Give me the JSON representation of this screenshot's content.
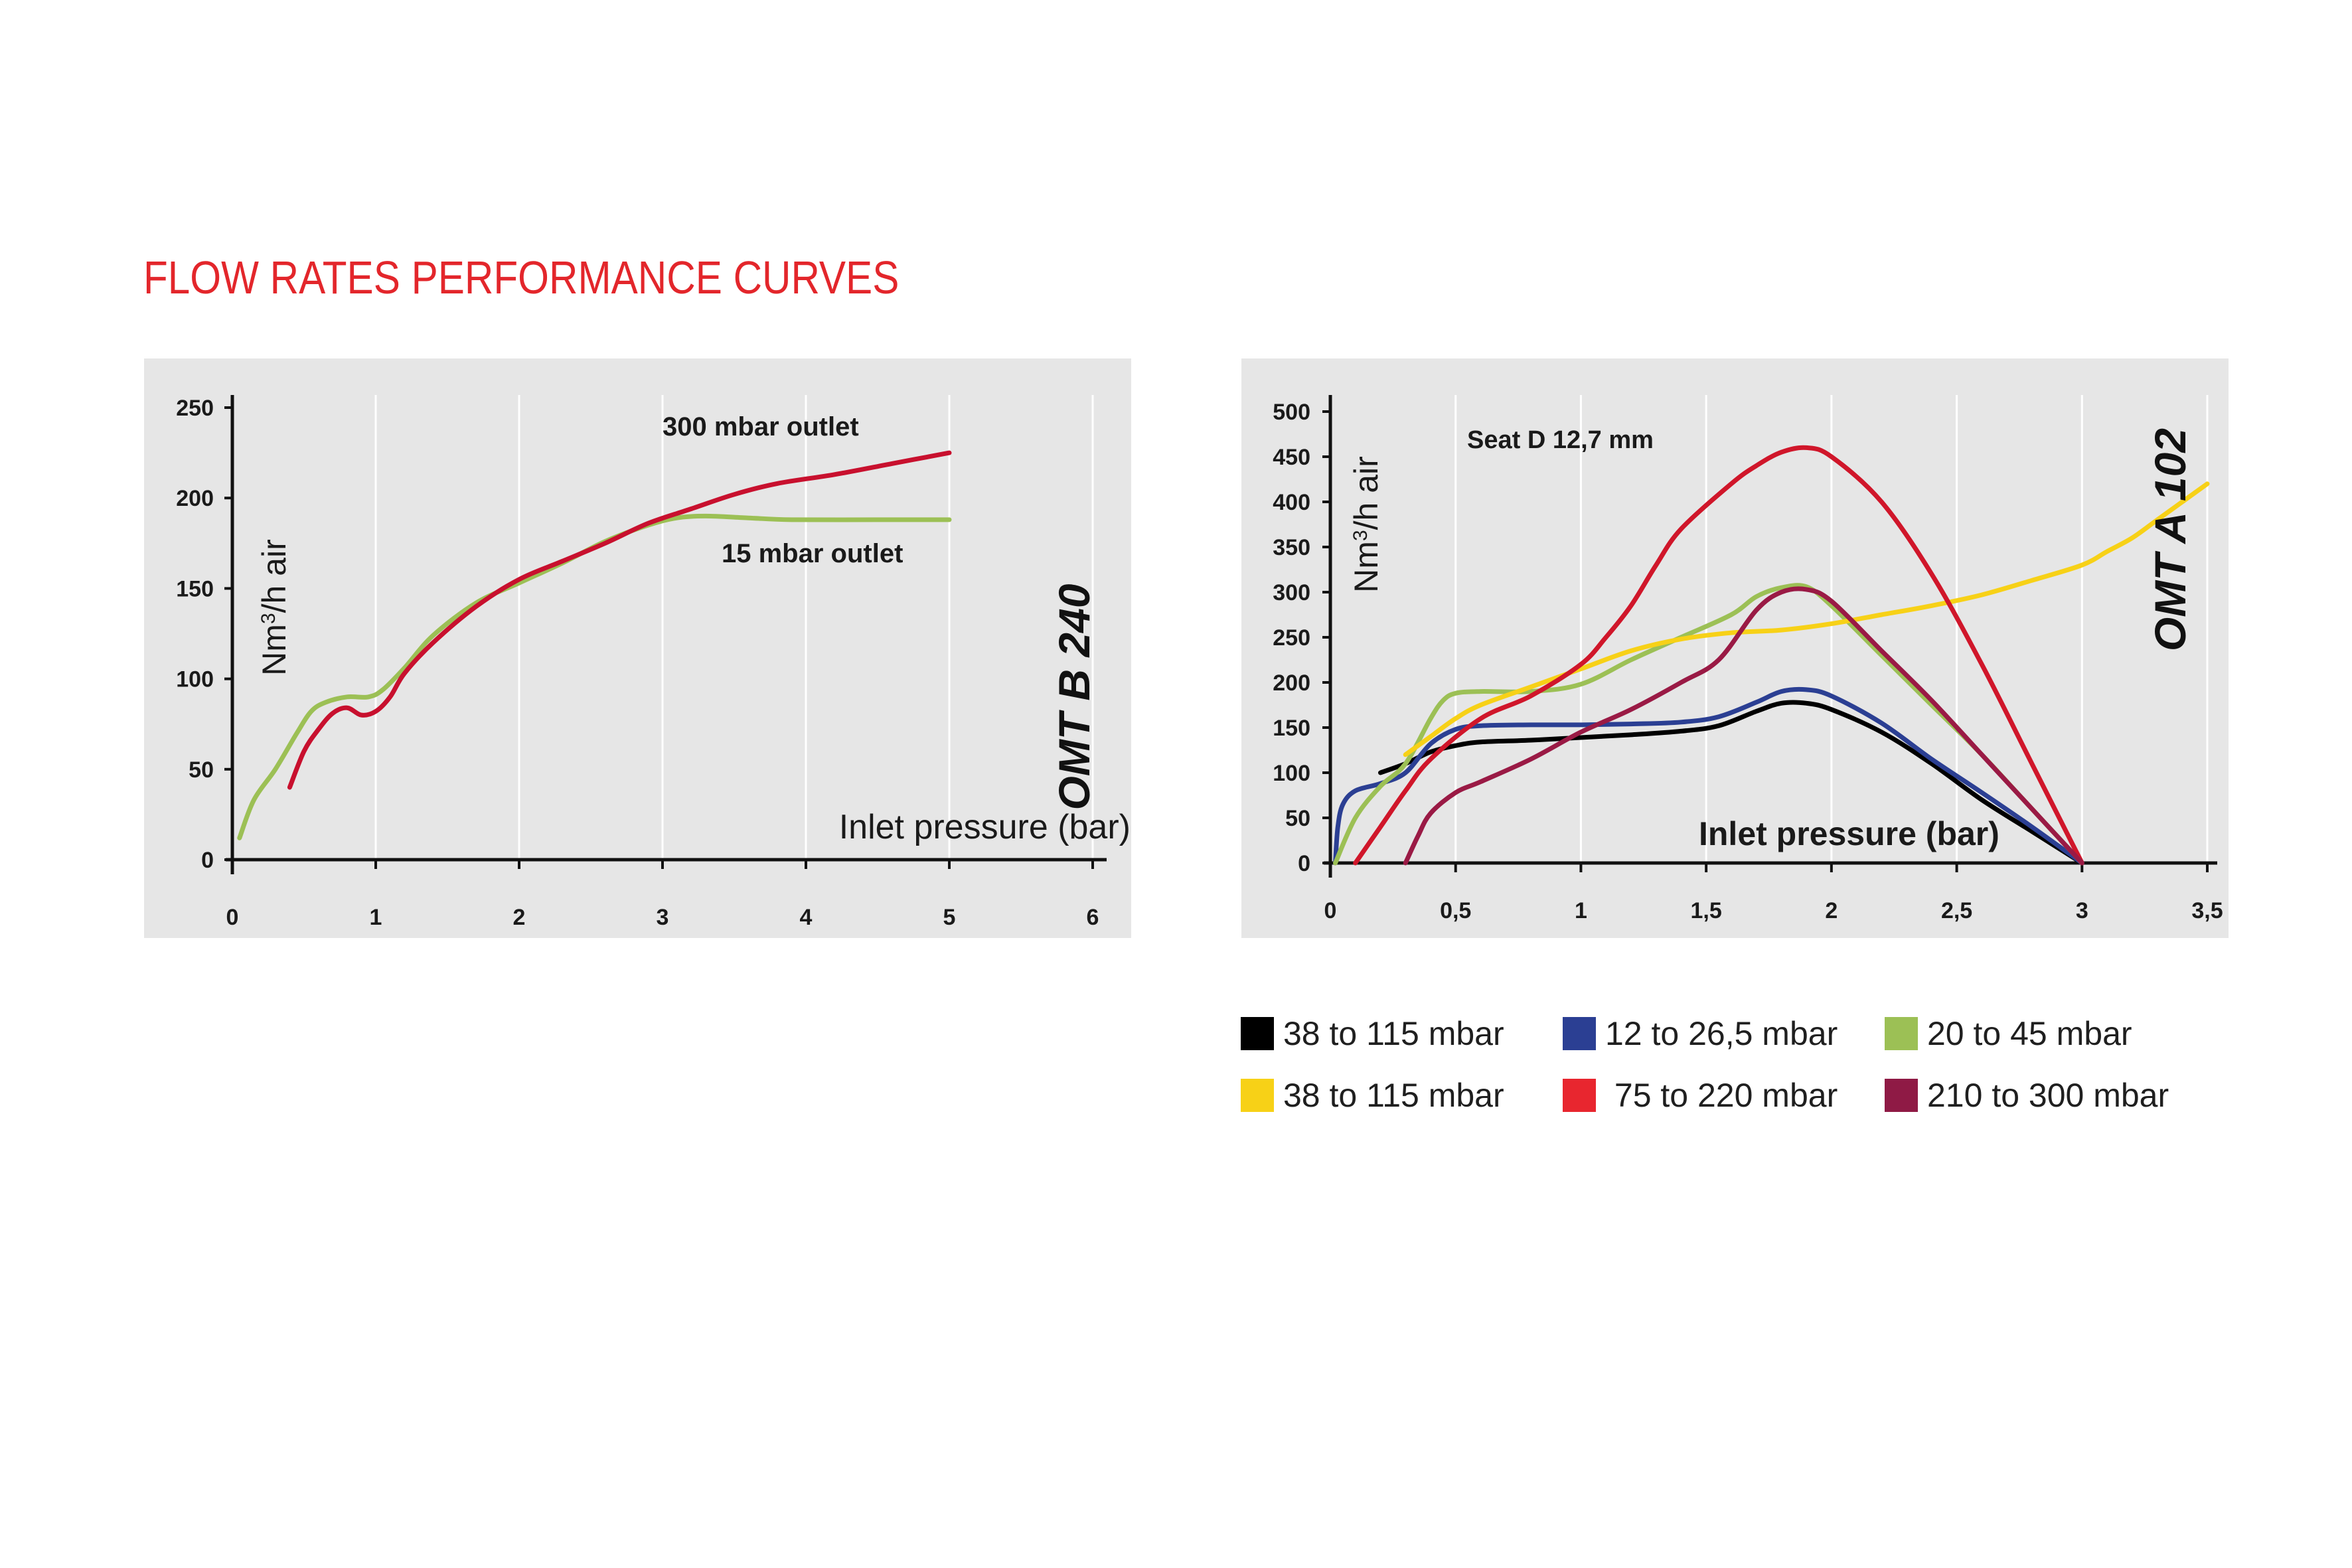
{
  "page": {
    "title": "FLOW RATES PERFORMANCE CURVES",
    "title_color": "#e3262b"
  },
  "chart_data": [
    {
      "type": "line",
      "title": "OMT B 240",
      "ylabel_prefix": "Nm",
      "ylabel_sup": "3",
      "ylabel_suffix": "/h air",
      "xlabel": "Inlet pressure  (bar)",
      "xlim": [
        0,
        6
      ],
      "ylim": [
        0,
        250
      ],
      "xticks": [
        0,
        1,
        2,
        3,
        4,
        5,
        6
      ],
      "xtick_labels": [
        "0",
        "1",
        "2",
        "3",
        "4",
        "5",
        "6"
      ],
      "yticks": [
        0,
        50,
        100,
        150,
        200,
        250
      ],
      "ytick_labels": [
        "0",
        "50",
        "100",
        "150",
        "200",
        "250"
      ],
      "grid": "vertical",
      "series": [
        {
          "name": "15 mbar outlet",
          "color": "#9cc055",
          "x": [
            0.05,
            0.15,
            0.3,
            0.45,
            0.55,
            0.65,
            0.8,
            0.95,
            1.05,
            1.2,
            1.4,
            1.7,
            2.0,
            2.3,
            2.6,
            2.9,
            3.1,
            3.3,
            3.6,
            3.9,
            4.5,
            5.0
          ],
          "y": [
            12,
            33,
            50,
            70,
            82,
            87,
            90,
            90,
            94,
            106,
            124,
            142,
            153,
            164,
            176,
            185,
            189,
            190,
            189,
            188,
            188,
            188
          ]
        },
        {
          "name": "300 mbar outlet",
          "color": "#c8102e",
          "x": [
            0.4,
            0.5,
            0.6,
            0.7,
            0.8,
            0.9,
            1.0,
            1.1,
            1.2,
            1.4,
            1.7,
            2.0,
            2.3,
            2.6,
            2.9,
            3.2,
            3.5,
            3.8,
            4.2,
            4.6,
            5.0
          ],
          "y": [
            40,
            60,
            72,
            81,
            84,
            80,
            82,
            90,
            103,
            120,
            140,
            155,
            165,
            175,
            186,
            194,
            202,
            208,
            213,
            219,
            225
          ]
        }
      ],
      "annotations": [
        "300 mbar outlet",
        "15 mbar outlet"
      ]
    },
    {
      "type": "line",
      "title": "OMT A 102",
      "subtitle": "Seat D 12,7 mm",
      "ylabel_prefix": "Nm",
      "ylabel_sup": "3",
      "ylabel_suffix": "/h air",
      "xlabel": "Inlet pressure  (bar)",
      "xlim": [
        0,
        3.5
      ],
      "ylim": [
        0,
        500
      ],
      "xticks": [
        0,
        0.5,
        1,
        1.5,
        2,
        2.5,
        3,
        3.5
      ],
      "xtick_labels": [
        "0",
        "0,5",
        "1",
        "1,5",
        "2",
        "2,5",
        "3",
        "3,5"
      ],
      "yticks": [
        0,
        50,
        100,
        150,
        200,
        250,
        300,
        350,
        400,
        450,
        500
      ],
      "ytick_labels": [
        "0",
        "50",
        "100",
        "150",
        "200",
        "250",
        "300",
        "350",
        "400",
        "450",
        "500"
      ],
      "grid": "vertical",
      "series": [
        {
          "name": "38 to 115 mbar",
          "color": "#000000",
          "x": [
            0.2,
            0.3,
            0.4,
            0.5,
            0.6,
            0.8,
            1.0,
            1.2,
            1.4,
            1.55,
            1.7,
            1.8,
            1.9,
            2.0,
            2.2,
            2.4,
            2.6,
            2.8,
            3.0
          ],
          "y": [
            100,
            110,
            123,
            130,
            134,
            136,
            139,
            142,
            146,
            152,
            168,
            177,
            177,
            170,
            145,
            110,
            70,
            35,
            0
          ]
        },
        {
          "name": "12 to 26,5 mbar",
          "color": "#2b3f93",
          "x": [
            0.02,
            0.03,
            0.05,
            0.1,
            0.2,
            0.3,
            0.4,
            0.5,
            0.6,
            0.8,
            1.0,
            1.2,
            1.4,
            1.55,
            1.7,
            1.8,
            1.9,
            2.0,
            2.2,
            2.4,
            2.6,
            2.8,
            3.0
          ],
          "y": [
            0,
            40,
            65,
            80,
            88,
            100,
            132,
            148,
            152,
            153,
            153,
            154,
            156,
            162,
            178,
            190,
            192,
            185,
            155,
            115,
            78,
            40,
            0
          ]
        },
        {
          "name": "20 to 45 mbar",
          "color": "#9cc055",
          "x": [
            0.02,
            0.1,
            0.2,
            0.3,
            0.4,
            0.45,
            0.5,
            0.6,
            0.8,
            1.0,
            1.2,
            1.4,
            1.6,
            1.7,
            1.8,
            1.9,
            2.0,
            2.2,
            2.4,
            2.6,
            2.8,
            3.0
          ],
          "y": [
            0,
            50,
            85,
            110,
            160,
            180,
            188,
            190,
            190,
            198,
            225,
            250,
            275,
            295,
            305,
            306,
            285,
            230,
            175,
            120,
            60,
            0
          ]
        },
        {
          "name": "38 to 115 mbar",
          "color": "#f7d117",
          "x": [
            0.3,
            0.4,
            0.5,
            0.6,
            0.8,
            1.0,
            1.2,
            1.4,
            1.6,
            1.8,
            2.0,
            2.2,
            2.4,
            2.6,
            2.8,
            3.0,
            3.1,
            3.2,
            3.3,
            3.4,
            3.5
          ],
          "y": [
            120,
            140,
            160,
            175,
            195,
            215,
            235,
            248,
            255,
            258,
            265,
            275,
            285,
            297,
            313,
            330,
            345,
            360,
            380,
            400,
            420
          ]
        },
        {
          "name": "75 to 220 mbar",
          "color": "#d0162a",
          "x": [
            0.1,
            0.2,
            0.3,
            0.4,
            0.6,
            0.8,
            1.0,
            1.1,
            1.2,
            1.3,
            1.4,
            1.6,
            1.7,
            1.8,
            1.9,
            2.0,
            2.2,
            2.4,
            2.6,
            2.8,
            3.0
          ],
          "y": [
            0,
            40,
            80,
            115,
            160,
            185,
            220,
            250,
            285,
            330,
            370,
            420,
            440,
            455,
            460,
            450,
            400,
            320,
            220,
            110,
            0
          ]
        },
        {
          "name": "210 to 300 mbar",
          "color": "#9a1a45",
          "x": [
            0.3,
            0.35,
            0.4,
            0.5,
            0.6,
            0.8,
            1.0,
            1.2,
            1.4,
            1.55,
            1.7,
            1.8,
            1.9,
            2.0,
            2.2,
            2.4,
            2.6,
            2.8,
            3.0
          ],
          "y": [
            0,
            30,
            55,
            78,
            90,
            115,
            145,
            170,
            200,
            225,
            280,
            300,
            303,
            290,
            235,
            180,
            120,
            60,
            0
          ]
        }
      ]
    }
  ],
  "legend": {
    "items": [
      {
        "label": "38 to 115 mbar",
        "color": "#000000"
      },
      {
        "label": "12 to 26,5 mbar",
        "color": "#2b3f93"
      },
      {
        "label": "20 to 45 mbar",
        "color": "#9cc055"
      },
      {
        "label": "38 to 115 mbar",
        "color": "#f7d117"
      },
      {
        "label": " 75 to 220 mbar",
        "color": "#e8262f"
      },
      {
        "label": "210 to 300 mbar",
        "color": "#8f1a45"
      }
    ]
  }
}
